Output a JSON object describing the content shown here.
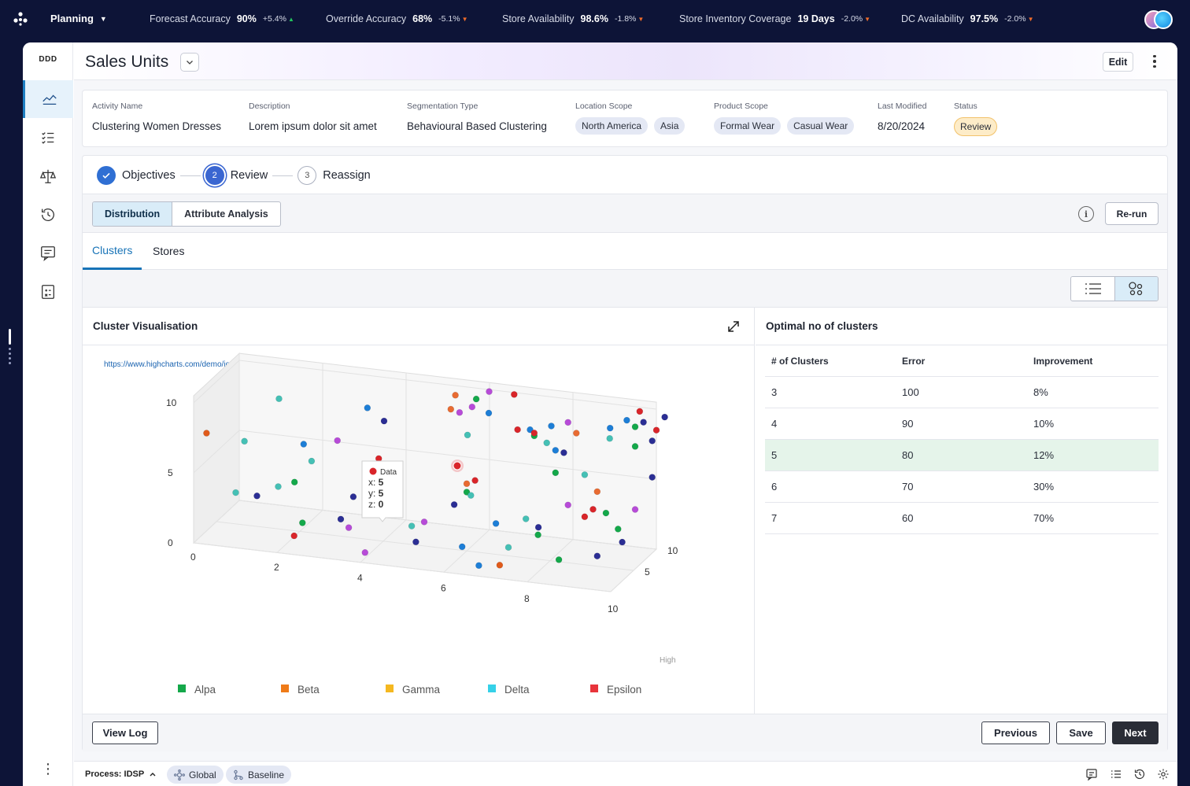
{
  "topbar": {
    "module": "Planning",
    "kpis": [
      {
        "label": "Forecast Accuracy",
        "value": "90%",
        "delta": "+5.4%",
        "dir": "up"
      },
      {
        "label": "Override Accuracy",
        "value": "68%",
        "delta": "-5.1%",
        "dir": "down"
      },
      {
        "label": "Store Availability",
        "value": "98.6%",
        "delta": "-1.8%",
        "dir": "down"
      },
      {
        "label": "Store Inventory Coverage",
        "value": "19 Days",
        "delta": "-2.0%",
        "dir": "down"
      },
      {
        "label": "DC Availability",
        "value": "97.5%",
        "delta": "-2.0%",
        "dir": "down"
      }
    ]
  },
  "sidenav": {
    "brand": "DDD",
    "items": [
      "trend-chart-icon",
      "checklist-icon",
      "scale-icon",
      "history-icon",
      "comment-icon",
      "calculator-doc-icon"
    ]
  },
  "header": {
    "title": "Sales Units",
    "edit_label": "Edit"
  },
  "meta": {
    "activity_name": {
      "label": "Activity Name",
      "value": "Clustering Women Dresses"
    },
    "description": {
      "label": "Description",
      "value": "Lorem ipsum dolor sit amet"
    },
    "segmentation": {
      "label": "Segmentation Type",
      "value": "Behavioural Based Clustering"
    },
    "location": {
      "label": "Location Scope",
      "chips": [
        "North America",
        "Asia"
      ]
    },
    "product": {
      "label": "Product Scope",
      "chips": [
        "Formal Wear",
        "Casual Wear"
      ]
    },
    "modified": {
      "label": "Last Modified",
      "value": "8/20/2024"
    },
    "status": {
      "label": "Status",
      "value": "Review"
    }
  },
  "stepper": {
    "steps": [
      {
        "num": "",
        "label": "Objectives",
        "state": "done"
      },
      {
        "num": "2",
        "label": "Review",
        "state": "current"
      },
      {
        "num": "3",
        "label": "Reassign",
        "state": "todo"
      }
    ]
  },
  "toolbar": {
    "seg": [
      "Distribution",
      "Attribute Analysis"
    ],
    "info": "i",
    "rerun": "Re-run"
  },
  "tabs": [
    "Clusters",
    "Stores"
  ],
  "chart_panel": {
    "title": "Cluster Visualisation",
    "link": "https://www.highcharts.com/demo/ios/3d-scatter-draggable"
  },
  "chart_data": {
    "type": "scatter",
    "title": "",
    "xlabel": "",
    "ylabel": "",
    "zlabel": "High",
    "xlim": [
      0,
      10
    ],
    "ylim": [
      0,
      10
    ],
    "zlim": [
      0,
      10
    ],
    "x_ticks": [
      "0",
      "2",
      "4",
      "6",
      "8",
      "10"
    ],
    "y_ticks": [
      "0",
      "5",
      "10"
    ],
    "z_ticks": [
      "5",
      "10"
    ],
    "legend": [
      "Alpa",
      "Beta",
      "Gamma",
      "Delta",
      "Epsilon"
    ],
    "legend_colors": [
      "#14a84a",
      "#ef7b18",
      "#f5b820",
      "#35d1e8",
      "#e8343b"
    ],
    "tooltip": {
      "series": "Data",
      "x": "5",
      "y": "5",
      "z": "0",
      "x_label": "x:",
      "y_label": "y:",
      "z_label": "z:"
    },
    "points": [
      [
        0.2,
        7.6,
        1,
        "#e05a1a"
      ],
      [
        1.0,
        7.0,
        2,
        "#45c0b5"
      ],
      [
        1.5,
        9.3,
        5,
        "#45c0b5"
      ],
      [
        2.2,
        6.6,
        4,
        "#1d7ed6"
      ],
      [
        2.5,
        5.8,
        3,
        "#45c0b5"
      ],
      [
        0.9,
        3.6,
        1,
        "#45c0b5"
      ],
      [
        1.3,
        3.2,
        2,
        "#2b2e94"
      ],
      [
        1.7,
        3.7,
        3,
        "#45c0b5"
      ],
      [
        2.2,
        4.5,
        2,
        "#14a84a"
      ],
      [
        2.9,
        6.8,
        5,
        "#b74bd8"
      ],
      [
        3.4,
        8.7,
        7,
        "#1d7ed6"
      ],
      [
        3.8,
        7.9,
        7,
        "#2b2e94"
      ],
      [
        4.0,
        6.2,
        4,
        "#d9252a"
      ],
      [
        4.3,
        5.1,
        4,
        "#e86b32"
      ],
      [
        2.5,
        2.0,
        1,
        "#14a84a"
      ],
      [
        2.3,
        1.0,
        1,
        "#d9252a"
      ],
      [
        3.2,
        1.9,
        3,
        "#2b2e94"
      ],
      [
        3.5,
        3.6,
        3,
        "#2b2e94"
      ],
      [
        3.9,
        3.9,
        4,
        "#e86b32"
      ],
      [
        4.3,
        4.2,
        4,
        "#45c0b5"
      ],
      [
        4.0,
        0.4,
        1,
        "#b74bd8"
      ],
      [
        5.4,
        9.3,
        7,
        "#e86b32"
      ],
      [
        5.4,
        10.0,
        8,
        "#e86b32"
      ],
      [
        5.5,
        8.8,
        8,
        "#b74bd8"
      ],
      [
        5.8,
        9.3,
        8,
        "#b74bd8"
      ],
      [
        5.9,
        9.9,
        8,
        "#14a84a"
      ],
      [
        6.2,
        9.0,
        8,
        "#1d7ed6"
      ],
      [
        6.1,
        10.2,
        9,
        "#b74bd8"
      ],
      [
        6.7,
        10.2,
        9,
        "#d9252a"
      ],
      [
        5.8,
        7.6,
        7,
        "#45c0b5"
      ],
      [
        5.7,
        3.2,
        5,
        "#2b2e94"
      ],
      [
        4.9,
        2.0,
        3,
        "#45c0b5"
      ],
      [
        5.2,
        2.4,
        3,
        "#b74bd8"
      ],
      [
        6.0,
        4.2,
        5,
        "#14a84a"
      ],
      [
        6.0,
        4.8,
        5,
        "#e86b32"
      ],
      [
        6.1,
        4.0,
        5,
        "#45c0b5"
      ],
      [
        6.2,
        5.1,
        5,
        "#d9252a"
      ],
      [
        5.0,
        0.9,
        3,
        "#2b2e94"
      ],
      [
        6.0,
        0.6,
        4,
        "#1d7ed6"
      ],
      [
        6.7,
        2.2,
        5,
        "#1d7ed6"
      ],
      [
        7.0,
        0.6,
        5,
        "#45c0b5"
      ],
      [
        6.9,
        -0.4,
        4,
        "#e05a1a"
      ],
      [
        7.4,
        8.1,
        7,
        "#14a84a"
      ],
      [
        7.7,
        8.6,
        8,
        "#1d7ed6"
      ],
      [
        8.1,
        9.0,
        8,
        "#b74bd8"
      ],
      [
        7.3,
        8.5,
        7,
        "#1d7ed6"
      ],
      [
        7.4,
        8.3,
        7,
        "#d9252a"
      ],
      [
        7.7,
        7.7,
        7,
        "#45c0b5"
      ],
      [
        7.8,
        6.9,
        8,
        "#1d7ed6"
      ],
      [
        7.8,
        5.3,
        8,
        "#14a84a"
      ],
      [
        7.5,
        1.6,
        7,
        "#2b2e94"
      ],
      [
        7.6,
        1.4,
        6,
        "#14a84a"
      ],
      [
        7.2,
        2.1,
        7,
        "#45c0b5"
      ],
      [
        9.0,
        8.6,
        9,
        "#1d7ed6"
      ],
      [
        8.0,
        6.8,
        8,
        "#2b2e94"
      ],
      [
        8.5,
        5.4,
        8,
        "#45c0b5"
      ],
      [
        8.8,
        4.3,
        8,
        "#e86b32"
      ],
      [
        8.1,
        3.1,
        8,
        "#b74bd8"
      ],
      [
        8.7,
        3.0,
        8,
        "#d9252a"
      ],
      [
        8.5,
        2.4,
        8,
        "#d9252a"
      ],
      [
        8.9,
        2.5,
        9,
        "#14a84a"
      ],
      [
        9.1,
        8.2,
        8,
        "#45c0b5"
      ],
      [
        9.4,
        9.3,
        9,
        "#1d7ed6"
      ],
      [
        9.6,
        8.9,
        9,
        "#14a84a"
      ],
      [
        10.0,
        8.5,
        10,
        "#d9252a"
      ],
      [
        9.6,
        9.7,
        10,
        "#d9252a"
      ],
      [
        9.8,
        9.3,
        9,
        "#2b2e94"
      ],
      [
        10.2,
        9.5,
        10,
        "#2b2e94"
      ],
      [
        9.9,
        7.7,
        10,
        "#2b2e94"
      ],
      [
        9.6,
        7.5,
        9,
        "#14a84a"
      ],
      [
        9.9,
        5.1,
        10,
        "#2b2e94"
      ],
      [
        9.6,
        3.0,
        9,
        "#b74bd8"
      ],
      [
        9.3,
        1.8,
        8,
        "#14a84a"
      ],
      [
        9.4,
        0.9,
        8,
        "#2b2e94"
      ],
      [
        8.8,
        -0.3,
        8,
        "#2b2e94"
      ],
      [
        8.1,
        -0.2,
        6,
        "#14a84a"
      ],
      [
        6.4,
        -0.6,
        4,
        "#1d7ed6"
      ],
      [
        8.3,
        8.3,
        8,
        "#e86b32"
      ],
      [
        7.0,
        8.4,
        7,
        "#d9252a"
      ],
      [
        3.5,
        1.7,
        2,
        "#b74bd8"
      ]
    ]
  },
  "optimal": {
    "title": "Optimal no of clusters",
    "headers": [
      "# of Clusters",
      "Error",
      "Improvement"
    ],
    "rows": [
      {
        "n": "3",
        "err": "100",
        "imp": "8%"
      },
      {
        "n": "4",
        "err": "90",
        "imp": "10%"
      },
      {
        "n": "5",
        "err": "80",
        "imp": "12%"
      },
      {
        "n": "6",
        "err": "70",
        "imp": "30%"
      },
      {
        "n": "7",
        "err": "60",
        "imp": "70%"
      }
    ],
    "highlight_index": 2
  },
  "footer": {
    "view_log": "View Log",
    "previous": "Previous",
    "save": "Save",
    "next": "Next"
  },
  "bottombar": {
    "process": "Process: IDSP",
    "global": "Global",
    "baseline": "Baseline"
  }
}
